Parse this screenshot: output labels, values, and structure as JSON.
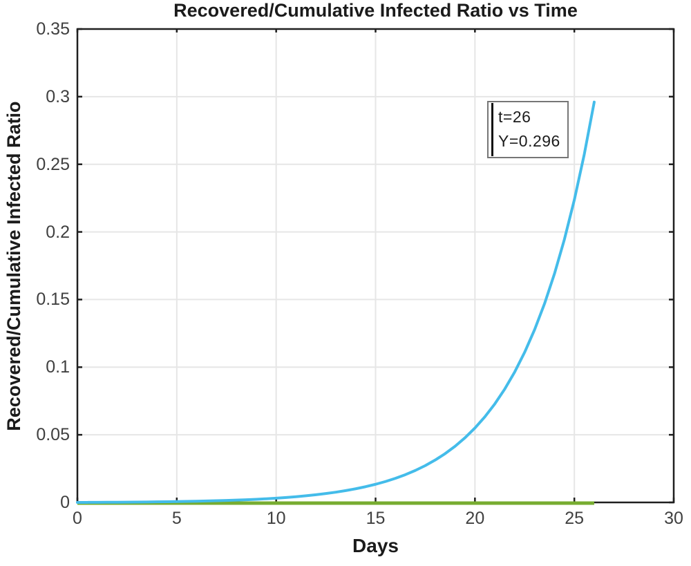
{
  "figure": {
    "title": "Recovered/Cumulative Infected Ratio vs Time",
    "xlabel": "Days",
    "ylabel": "Recovered/Cumulative Infected Ratio"
  },
  "annotation": {
    "line1": "t=26",
    "line2": "Y=0.296"
  },
  "colors": {
    "ratio_line": "#44BCEA",
    "zero_line": "#77AC30",
    "grid": "#E6E6E6",
    "axis": "#1F1F1F",
    "tick_text": "#404040",
    "label_text": "#1B1B1B"
  },
  "chart_data": {
    "type": "line",
    "title": "Recovered/Cumulative Infected Ratio vs Time",
    "xlabel": "Days",
    "ylabel": "Recovered/Cumulative Infected Ratio",
    "xlim": [
      0,
      30
    ],
    "ylim": [
      0,
      0.35
    ],
    "x_ticks": [
      0,
      5,
      10,
      15,
      20,
      25,
      30
    ],
    "x_tick_labels": [
      "0",
      "5",
      "10",
      "15",
      "20",
      "25",
      "30"
    ],
    "y_ticks": [
      0,
      0.05,
      0.1,
      0.15,
      0.2,
      0.25,
      0.3,
      0.35
    ],
    "y_tick_labels": [
      "0",
      "0.05",
      "0.1",
      "0.15",
      "0.2",
      "0.25",
      "0.3",
      "0.35"
    ],
    "grid": true,
    "legend": "none",
    "annotation": {
      "text": [
        "t=26",
        "Y=0.296"
      ],
      "x": 26,
      "y": 0.296
    },
    "series": [
      {
        "name": "recovered-cumulative-infected-ratio",
        "color": "#44BCEA",
        "x": [
          0,
          0.5,
          1,
          1.5,
          2,
          2.5,
          3,
          3.5,
          4,
          4.5,
          5,
          5.5,
          6,
          6.5,
          7,
          7.5,
          8,
          8.5,
          9,
          9.5,
          10,
          10.5,
          11,
          11.5,
          12,
          12.5,
          13,
          13.5,
          14,
          14.5,
          15,
          15.5,
          16,
          16.5,
          17,
          17.5,
          18,
          18.5,
          19,
          19.5,
          20,
          20.5,
          21,
          21.5,
          22,
          22.5,
          23,
          23.5,
          24,
          24.5,
          25,
          25.5,
          26
        ],
        "y": [
          0,
          3e-05,
          7e-05,
          0.00011,
          0.00015,
          0.00021,
          0.00027,
          0.00034,
          0.00042,
          0.00052,
          0.00062,
          0.00075,
          0.00089,
          0.00106,
          0.00125,
          0.00146,
          0.00171,
          0.002,
          0.00233,
          0.00271,
          0.00315,
          0.00366,
          0.00424,
          0.00491,
          0.00567,
          0.00656,
          0.00757,
          0.00874,
          0.01009,
          0.01163,
          0.01341,
          0.01546,
          0.01781,
          0.02052,
          0.02363,
          0.02721,
          0.03133,
          0.03607,
          0.04153,
          0.0478,
          0.05501,
          0.06331,
          0.07285,
          0.08383,
          0.09646,
          0.11099,
          0.1277,
          0.14692,
          0.16903,
          0.19446,
          0.22372,
          0.25737,
          0.296
        ]
      },
      {
        "name": "zero-baseline",
        "color": "#77AC30",
        "x": [
          0,
          26
        ],
        "y": [
          0,
          0
        ]
      }
    ]
  }
}
